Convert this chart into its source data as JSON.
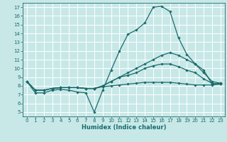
{
  "title": "",
  "xlabel": "Humidex (Indice chaleur)",
  "xlim": [
    -0.5,
    23.5
  ],
  "ylim": [
    4.5,
    17.5
  ],
  "xticks": [
    0,
    1,
    2,
    3,
    4,
    5,
    6,
    7,
    8,
    9,
    10,
    11,
    12,
    13,
    14,
    15,
    16,
    17,
    18,
    19,
    20,
    21,
    22,
    23
  ],
  "yticks": [
    5,
    6,
    7,
    8,
    9,
    10,
    11,
    12,
    13,
    14,
    15,
    16,
    17
  ],
  "background_color": "#c8e8e8",
  "line_color": "#1a6b6b",
  "grid_color": "#ffffff",
  "tick_fontsize": 5.0,
  "xlabel_fontsize": 6.0,
  "lines": [
    [
      8.5,
      7.2,
      7.2,
      7.5,
      7.6,
      7.5,
      7.3,
      7.2,
      5.0,
      7.5,
      9.8,
      12.0,
      13.9,
      14.4,
      15.2,
      17.0,
      17.1,
      16.5,
      13.5,
      11.6,
      10.5,
      9.8,
      8.2,
      8.3
    ],
    [
      8.5,
      7.5,
      7.5,
      7.7,
      7.8,
      7.8,
      7.8,
      7.7,
      7.7,
      8.0,
      8.5,
      9.0,
      9.5,
      10.0,
      10.5,
      11.0,
      11.5,
      11.8,
      11.5,
      11.0,
      10.5,
      9.5,
      8.5,
      8.3
    ],
    [
      8.5,
      7.5,
      7.5,
      7.7,
      7.8,
      7.8,
      7.8,
      7.7,
      7.7,
      8.0,
      8.5,
      9.0,
      9.2,
      9.5,
      10.0,
      10.3,
      10.5,
      10.5,
      10.2,
      9.8,
      9.5,
      8.8,
      8.3,
      8.2
    ],
    [
      8.5,
      7.5,
      7.5,
      7.7,
      7.8,
      7.8,
      7.8,
      7.7,
      7.7,
      7.9,
      8.0,
      8.1,
      8.2,
      8.3,
      8.4,
      8.4,
      8.4,
      8.4,
      8.3,
      8.2,
      8.1,
      8.1,
      8.1,
      8.2
    ]
  ]
}
